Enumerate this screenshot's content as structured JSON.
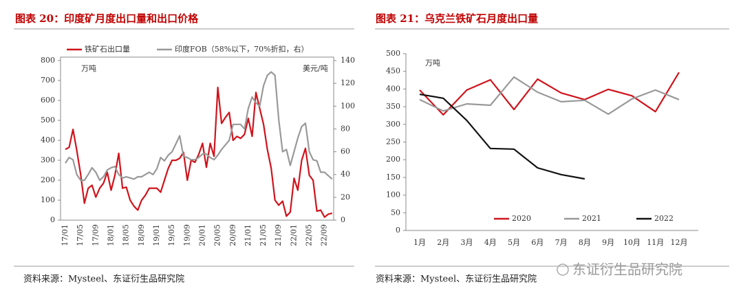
{
  "chart_data": [
    {
      "type": "line",
      "title": "图表 20：印度矿月度出口量和出口价格",
      "y_unit": "万吨",
      "y2_unit": "美元/吨",
      "categories": [
        "17/01",
        null,
        null,
        null,
        "17/05",
        null,
        null,
        null,
        "17/09",
        null,
        null,
        null,
        "18/01",
        null,
        null,
        null,
        "18/05",
        null,
        null,
        null,
        "18/09",
        null,
        null,
        null,
        "19/01",
        null,
        null,
        null,
        "19/05",
        null,
        null,
        null,
        "19/09",
        null,
        null,
        null,
        "20/01",
        null,
        null,
        null,
        "20/05",
        null,
        null,
        null,
        "20/09",
        null,
        null,
        null,
        "21/01",
        null,
        null,
        null,
        "21/05",
        null,
        null,
        null,
        "21/09",
        null,
        null,
        null,
        "22/01",
        null,
        null,
        null,
        "22/05",
        null,
        null,
        null,
        "22/09",
        null,
        null
      ],
      "ylim": [
        0,
        800
      ],
      "yticks": [
        0,
        100,
        200,
        300,
        400,
        500,
        600,
        700,
        800
      ],
      "y2lim": [
        0,
        140
      ],
      "y2ticks": [
        0,
        20,
        40,
        60,
        80,
        100,
        120,
        140
      ],
      "series": [
        {
          "name": "铁矿石出口量",
          "color": "#d0131b",
          "values": [
            355,
            365,
            455,
            350,
            230,
            85,
            160,
            175,
            115,
            160,
            185,
            240,
            150,
            225,
            335,
            160,
            165,
            100,
            70,
            50,
            100,
            125,
            160,
            160,
            160,
            140,
            200,
            260,
            300,
            300,
            310,
            340,
            200,
            300,
            290,
            330,
            385,
            265,
            385,
            320,
            665,
            485,
            515,
            540,
            400,
            420,
            410,
            430,
            510,
            420,
            640,
            560,
            480,
            355,
            260,
            100,
            75,
            95,
            20,
            40,
            210,
            150,
            300,
            360,
            225,
            200,
            45,
            50,
            15,
            30,
            35
          ]
        },
        {
          "name": "印度FOB（58%以下，70%折扣，右）",
          "color": "#999999",
          "axis": "y2",
          "values": [
            50,
            55,
            53,
            40,
            35,
            35,
            40,
            46,
            42,
            35,
            38,
            44,
            46,
            47,
            40,
            37,
            38,
            37,
            36,
            38,
            38,
            40,
            42,
            40,
            45,
            55,
            52,
            57,
            60,
            67,
            74,
            56,
            55,
            53,
            53,
            55,
            58,
            58,
            55,
            53,
            57,
            62,
            66,
            70,
            84,
            84,
            84,
            80,
            98,
            108,
            103,
            100,
            118,
            127,
            130,
            127,
            88,
            60,
            62,
            48,
            60,
            72,
            82,
            85,
            60,
            53,
            52,
            42,
            42,
            39,
            36
          ]
        }
      ]
    },
    {
      "type": "line",
      "title": "图表 21：乌克兰铁矿石月度出口量",
      "y_unit": "万吨",
      "categories": [
        "1月",
        "2月",
        "3月",
        "4月",
        "5月",
        "6月",
        "7月",
        "8月",
        "9月",
        "10月",
        "11月",
        "12月"
      ],
      "ylim": [
        0,
        500
      ],
      "yticks": [
        0,
        50,
        100,
        150,
        200,
        250,
        300,
        350,
        400,
        450,
        500
      ],
      "series": [
        {
          "name": "2020",
          "color": "#d0131b",
          "values": [
            397,
            327,
            397,
            426,
            342,
            428,
            389,
            370,
            399,
            381,
            336,
            447
          ]
        },
        {
          "name": "2021",
          "color": "#999999",
          "values": [
            370,
            338,
            358,
            354,
            434,
            391,
            364,
            368,
            329,
            372,
            397,
            370
          ]
        },
        {
          "name": "2022",
          "color": "#111111",
          "values": [
            385,
            374,
            311,
            232,
            230,
            177,
            158,
            146,
            null,
            null,
            null,
            null
          ]
        }
      ]
    }
  ],
  "sources": [
    "资料来源：Mysteel、东证衍生品研究院",
    "资料来源：Mysteel、东证衍生品研究院"
  ],
  "watermark": "东证衍生品研究院"
}
